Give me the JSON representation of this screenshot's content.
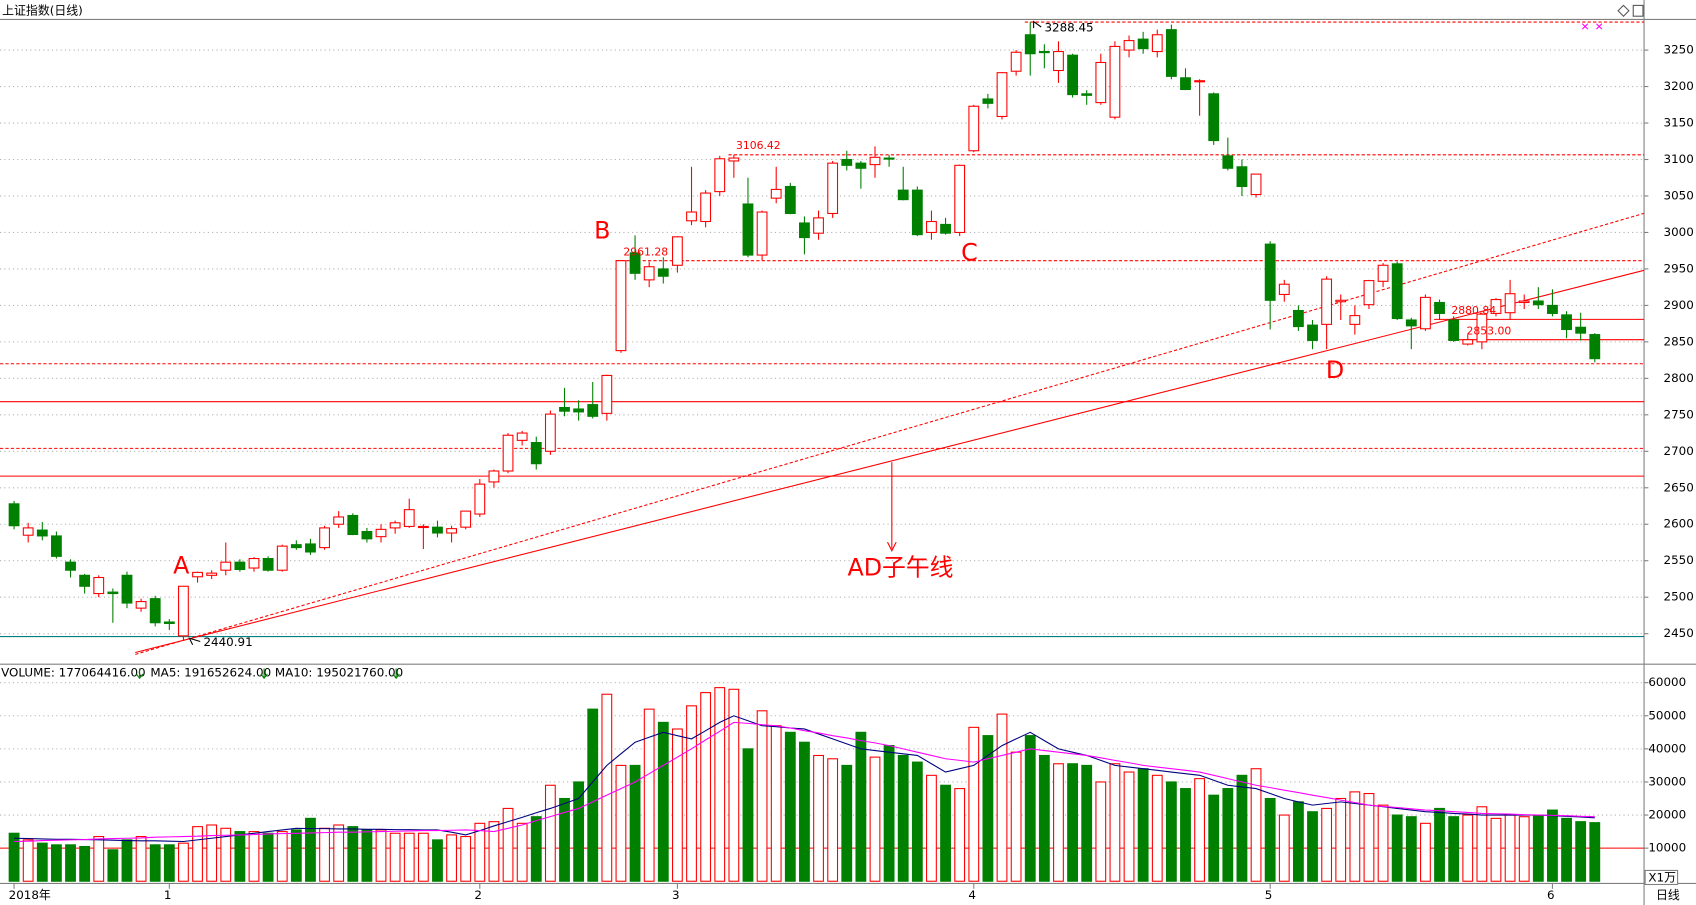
{
  "title": "上证指数(日线)",
  "period_label": "日线",
  "chart_data": [
    {
      "type": "candlestick",
      "categories": [
        "2018年",
        null,
        null,
        null,
        null,
        null,
        null,
        null,
        null,
        null,
        null,
        "1",
        null,
        null,
        null,
        null,
        null,
        null,
        null,
        null,
        null,
        null,
        null,
        null,
        null,
        null,
        null,
        null,
        null,
        null,
        null,
        null,
        null,
        "2",
        null,
        null,
        null,
        null,
        null,
        null,
        null,
        null,
        null,
        null,
        null,
        null,
        null,
        "3",
        null,
        null,
        null,
        null,
        null,
        null,
        null,
        null,
        null,
        null,
        null,
        null,
        null,
        null,
        null,
        null,
        null,
        null,
        null,
        null,
        "4",
        null,
        null,
        null,
        null,
        null,
        null,
        null,
        null,
        null,
        null,
        null,
        null,
        null,
        null,
        null,
        null,
        null,
        null,
        null,
        null,
        "5",
        null,
        null,
        null,
        null,
        null,
        null,
        null,
        null,
        null,
        null,
        null,
        null,
        null,
        null,
        null,
        null,
        null,
        null,
        null,
        "6",
        null,
        null,
        null
      ],
      "open": [
        2628,
        2585,
        2592,
        2584,
        2548,
        2530,
        2505,
        2507,
        2530,
        2485,
        2498,
        2466,
        2447,
        2528,
        2530,
        2537,
        2548,
        2540,
        2553,
        2537,
        2572,
        2573,
        2568,
        2600,
        2612,
        2590,
        2583,
        2595,
        2597,
        2596,
        2596,
        2588,
        2596,
        2614,
        2658,
        2673,
        2715,
        2712,
        2700,
        2760,
        2758,
        2764,
        2752,
        2838,
        2972,
        2935,
        2950,
        2955,
        3016,
        3015,
        3056,
        3098,
        3039,
        2969,
        3047,
        3063,
        3013,
        2999,
        3026,
        3100,
        3095,
        3093,
        3102,
        3058,
        3058,
        3000,
        3011,
        3000,
        3112,
        3183,
        3159,
        3221,
        3271,
        3248,
        3222,
        3243,
        3190,
        3178,
        3158,
        3250,
        3265,
        3248,
        3278,
        3212,
        3207,
        3190,
        3105,
        3090,
        3052,
        2984,
        2915,
        2893,
        2873,
        2874,
        2905,
        2874,
        2901,
        2933,
        2957,
        2880,
        2868,
        2904,
        2880,
        2847,
        2850,
        2889,
        2890,
        2904,
        2906,
        2900,
        2887,
        2870,
        2860
      ],
      "high": [
        2632,
        2602,
        2603,
        2590,
        2552,
        2532,
        2530,
        2512,
        2535,
        2498,
        2502,
        2470,
        2515,
        2535,
        2537,
        2575,
        2552,
        2555,
        2556,
        2572,
        2578,
        2580,
        2598,
        2618,
        2615,
        2595,
        2600,
        2605,
        2635,
        2600,
        2605,
        2598,
        2618,
        2662,
        2675,
        2725,
        2728,
        2720,
        2756,
        2787,
        2770,
        2795,
        2805,
        2962,
        2996,
        2960,
        2966,
        2995,
        3090,
        3058,
        3105,
        3106.42,
        3075,
        3030,
        3090,
        3068,
        3022,
        3030,
        3098,
        3112,
        3098,
        3118,
        3106,
        3090,
        3063,
        3030,
        3020,
        3093,
        3175,
        3190,
        3220,
        3250,
        3288.45,
        3258,
        3262,
        3245,
        3195,
        3245,
        3262,
        3270,
        3275,
        3278,
        3285,
        3225,
        3210,
        3192,
        3130,
        3100,
        3080,
        2988,
        2935,
        2900,
        2880,
        2940,
        2915,
        2900,
        2935,
        2958,
        2960,
        2883,
        2915,
        2908,
        2885,
        2860,
        2890,
        2910,
        2935,
        2915,
        2925,
        2922,
        2892,
        2890,
        2862
      ],
      "low": [
        2593,
        2575,
        2578,
        2553,
        2527,
        2505,
        2500,
        2465,
        2485,
        2480,
        2460,
        2455,
        2440.91,
        2520,
        2525,
        2530,
        2535,
        2535,
        2535,
        2535,
        2565,
        2558,
        2565,
        2595,
        2585,
        2575,
        2575,
        2587,
        2595,
        2566,
        2582,
        2575,
        2593,
        2610,
        2650,
        2670,
        2708,
        2675,
        2695,
        2748,
        2742,
        2745,
        2742,
        2835,
        2935,
        2925,
        2930,
        2945,
        3010,
        3007,
        3050,
        3075,
        2966,
        2962,
        3040,
        3025,
        2970,
        2990,
        3020,
        3085,
        3060,
        3075,
        3090,
        3044,
        2995,
        2990,
        2997,
        2995,
        3110,
        3170,
        3155,
        3215,
        3215,
        3225,
        3205,
        3185,
        3175,
        3175,
        3155,
        3240,
        3245,
        3240,
        3210,
        3195,
        3160,
        3120,
        3085,
        3050,
        3048,
        2867,
        2905,
        2865,
        2840,
        2840,
        2880,
        2860,
        2895,
        2925,
        2880,
        2840,
        2865,
        2880,
        2850,
        2845,
        2840,
        2885,
        2880,
        2895,
        2895,
        2885,
        2855,
        2852,
        2822
      ],
      "close": [
        2598,
        2595,
        2584,
        2556,
        2537,
        2515,
        2527,
        2505,
        2492,
        2494,
        2465,
        2464,
        2515,
        2534,
        2533,
        2548,
        2538,
        2553,
        2537,
        2570,
        2568,
        2562,
        2595,
        2610,
        2586,
        2580,
        2593,
        2602,
        2620,
        2597,
        2588,
        2594,
        2618,
        2655,
        2673,
        2722,
        2725,
        2683,
        2751,
        2755,
        2754,
        2748,
        2804,
        2961.28,
        2944,
        2953,
        2940,
        2994,
        3028,
        3054,
        3101,
        3102,
        2969,
        3028,
        3059,
        3026,
        2993,
        3020,
        3095,
        3092,
        3088,
        3103,
        3101,
        3045,
        2997,
        3015,
        2999,
        3092,
        3173,
        3177,
        3219,
        3247,
        3245,
        3247,
        3248,
        3189,
        3188,
        3233,
        3255,
        3263,
        3252,
        3271,
        3214,
        3196,
        3208,
        3126,
        3088,
        3063,
        3080,
        2907,
        2929,
        2871,
        2852,
        2936,
        2907,
        2886,
        2934,
        2955,
        2882,
        2872,
        2911,
        2889,
        2852,
        2853,
        2888,
        2908,
        2916,
        2906,
        2901,
        2889,
        2867,
        2862,
        2827
      ],
      "up_color": "#ff0000",
      "down_color": "#008000",
      "ylim": [
        2423,
        3292
      ],
      "yticks": [
        2450,
        2500,
        2550,
        2600,
        2650,
        2700,
        2750,
        2800,
        2850,
        2900,
        2950,
        3000,
        3050,
        3100,
        3150,
        3200,
        3250
      ],
      "grid": true,
      "reference_lines": [
        {
          "value": 3288.45,
          "style": "dashed",
          "color": "#ff0000",
          "start": 72
        },
        {
          "value": 3106.42,
          "style": "dashed",
          "color": "#ff0000",
          "start": 51
        },
        {
          "value": 2961.28,
          "style": "dashed",
          "color": "#ff0000",
          "start": 43
        },
        {
          "value": 2880.84,
          "style": "solid",
          "color": "#ff0000",
          "start": 101
        },
        {
          "value": 2853,
          "style": "solid",
          "color": "#ff0000",
          "start": 102
        },
        {
          "value": 2820,
          "style": "dashed",
          "color": "#ff0000",
          "start": 0
        },
        {
          "value": 2768,
          "style": "solid",
          "color": "#ff0000",
          "start": 0
        },
        {
          "value": 2704,
          "style": "dashed",
          "color": "#ff0000",
          "start": 0
        },
        {
          "value": 2666,
          "style": "solid",
          "color": "#ff0000",
          "start": 0
        },
        {
          "value": 2446,
          "style": "solid",
          "color": "#008080",
          "start": 0
        }
      ],
      "trend_lines": [
        {
          "style": "solid",
          "color": "#ff0000",
          "points": [
            [
              12,
              2440.91
            ],
            [
              92,
              2833
            ]
          ]
        },
        {
          "style": "dashed",
          "color": "#ff0000",
          "points": [
            [
              12,
              2440.91
            ],
            [
              96,
              2916
            ]
          ]
        }
      ],
      "annotations": [
        "A",
        "B",
        "C",
        "D",
        "AD子午线",
        "3288.45",
        "2440.91",
        "3106.42",
        "2961.28",
        "2880.84",
        "2853.00"
      ]
    },
    {
      "type": "bar",
      "series": [
        {
          "name": "VOLUME: 177064416.00",
          "color": "#000080",
          "values": [
            14500,
            12500,
            11500,
            11000,
            11000,
            10500,
            13500,
            9500,
            12500,
            13500,
            11000,
            11000,
            11500,
            16500,
            17000,
            16000,
            15000,
            15000,
            14500,
            15000,
            15500,
            19000,
            16000,
            17000,
            16500,
            15500,
            15500,
            14500,
            14500,
            14500,
            12500,
            14000,
            13500,
            17500,
            18000,
            22000,
            17500,
            19500,
            29000,
            25000,
            30000,
            52000,
            56500,
            35000,
            35000,
            52000,
            48000,
            46000,
            53000,
            57000,
            58500,
            58000,
            40000,
            51500,
            47000,
            45000,
            42000,
            38000,
            37000,
            35000,
            45000,
            37500,
            41000,
            38000,
            36000,
            32000,
            29000,
            28000,
            46500,
            44000,
            50500,
            39000,
            44000,
            38000,
            35500,
            35500,
            35000,
            30000,
            35500,
            33000,
            34000,
            32000,
            30000,
            28000,
            31000,
            26000,
            28000,
            32000,
            34000,
            25000,
            20000,
            24000,
            21000,
            22000,
            25000,
            27000,
            26500,
            23000,
            20000,
            19500,
            17500,
            22000,
            19500,
            20000,
            22500,
            19000,
            20000,
            19500,
            20000,
            21500,
            19000,
            18000,
            17706
          ]
        },
        {
          "name": "MA5: 191652624.00",
          "color": "#000080",
          "values": [
            13000,
            12900,
            12800,
            12700,
            12700,
            12600,
            12500,
            12400,
            12300,
            12200,
            12200,
            12100,
            12000,
            12500,
            13000,
            13500,
            14000,
            14500,
            15000,
            15500,
            16000,
            15900,
            15900,
            15800,
            15800,
            15700,
            15700,
            15600,
            15600,
            15500,
            15500,
            14800,
            14000,
            15300,
            16700,
            18000,
            19300,
            20700,
            22000,
            23500,
            25000,
            30000,
            35000,
            38500,
            42000,
            43500,
            45000,
            44000,
            43000,
            45500,
            48000,
            50000,
            48500,
            47000,
            46700,
            46300,
            46000,
            44500,
            43000,
            41500,
            40000,
            39500,
            39000,
            38500,
            38000,
            35500,
            33000,
            34000,
            35000,
            38000,
            41000,
            43000,
            45000,
            42500,
            40000,
            39000,
            38000,
            36500,
            35000,
            34500,
            34000,
            33500,
            33000,
            32500,
            32000,
            30500,
            29000,
            28500,
            28000,
            26500,
            25000,
            24000,
            23000,
            23500,
            24000,
            23500,
            23000,
            22500,
            22000,
            21500,
            21000,
            20800,
            20500,
            20300,
            20000,
            20000,
            20000,
            20000,
            20000,
            19800,
            19600,
            19400,
            19165
          ]
        },
        {
          "name": "MA10: 195021760.00",
          "color": "#ff00ff",
          "values": [
            12000,
            12100,
            12300,
            12400,
            12500,
            12600,
            12800,
            12900,
            13000,
            13100,
            13300,
            13400,
            13500,
            13600,
            13800,
            13900,
            14000,
            14100,
            14300,
            14400,
            14500,
            14600,
            14700,
            14800,
            14800,
            14900,
            15000,
            15100,
            15200,
            15300,
            15300,
            15400,
            15500,
            15300,
            15000,
            16000,
            17000,
            18300,
            19500,
            20800,
            22000,
            24000,
            26000,
            28000,
            30000,
            32500,
            35000,
            37500,
            40000,
            42700,
            45300,
            48000,
            47700,
            47300,
            47000,
            46300,
            45500,
            44800,
            44000,
            43300,
            42500,
            41800,
            41000,
            40000,
            39000,
            38000,
            37000,
            36500,
            36000,
            37000,
            38000,
            39000,
            40000,
            39500,
            39000,
            38500,
            38000,
            37300,
            36500,
            35800,
            35000,
            34500,
            34000,
            33500,
            33000,
            32000,
            31000,
            30000,
            29000,
            28300,
            27500,
            26800,
            26000,
            25300,
            24500,
            23800,
            23000,
            22600,
            22300,
            21900,
            21500,
            21300,
            21000,
            20800,
            20500,
            20400,
            20300,
            20100,
            20000,
            19900,
            19800,
            19600,
            19502
          ]
        }
      ],
      "ylim": [
        0,
        62000
      ],
      "yticks": [
        10000,
        20000,
        30000,
        40000,
        50000,
        60000
      ],
      "grid": true,
      "reference_line": 10000,
      "unit_label": "X1万"
    }
  ]
}
